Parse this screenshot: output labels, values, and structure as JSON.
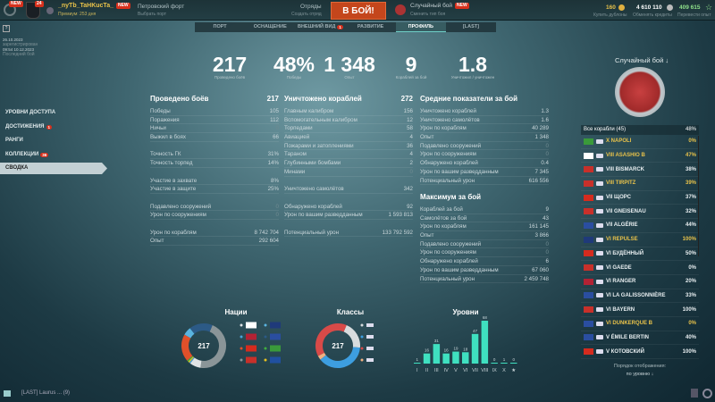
{
  "topbar": {
    "new_badge": "NEW",
    "level_badge": "24",
    "username": "_nyTb_TaHKucTa_",
    "premium": "Премиум: 253 дня",
    "port_name": "Петровский форт",
    "port_sub": "Выбрать порт",
    "squads": "Отряды",
    "squads_sub": "Создать отряд",
    "fight": "В БОЙ!",
    "mode": "Случайный бой",
    "mode_sub": "Сменить тип боя",
    "doubloons": "160",
    "doubloons_sub": "Купить дублоны",
    "credits": "4 610 110",
    "credits_sub": "Обменять кредиты",
    "freexp": "409 615",
    "freexp_sub": "Перевести опыт"
  },
  "tabs": [
    {
      "label": "ПОРТ"
    },
    {
      "label": "ОСНАЩЕНИЕ"
    },
    {
      "label": "ВНЕШНИЙ ВИД",
      "badge": "1"
    },
    {
      "label": "РАЗВИТИЕ"
    },
    {
      "label": "ПРОФИЛЬ",
      "active": true
    },
    {
      "label": "[LAST]"
    }
  ],
  "account": {
    "registered": "26.10.2023",
    "registered_label": "зарегистрирован",
    "last_battle": "09:54 10.12.2023",
    "last_battle_label": "Последний бой"
  },
  "sidebar": [
    {
      "label": "УРОВНИ ДОСТУПА"
    },
    {
      "label": "ДОСТИЖЕНИЯ",
      "badge": "1"
    },
    {
      "label": "РАНГИ"
    },
    {
      "label": "КОЛЛЕКЦИИ",
      "badge": "36"
    },
    {
      "label": "СВОДКА",
      "active": true
    }
  ],
  "summary": [
    {
      "value": "217",
      "label": "Проведено боёв"
    },
    {
      "value": "48%",
      "label": "Победы"
    },
    {
      "value": "1 348",
      "label": "Опыт"
    },
    {
      "value": "9",
      "label": "Кораблей за бой"
    },
    {
      "value": "1.8",
      "label": "Уничтожил / уничтожен"
    }
  ],
  "mode_selector": "Случайный бой",
  "battles": {
    "title": "Проведено боёв",
    "total": "217",
    "groups": [
      [
        [
          "Победы",
          "105"
        ],
        [
          "Поражения",
          "112"
        ],
        [
          "Ничьи",
          "0"
        ],
        [
          "Выжил в боях",
          "66"
        ]
      ],
      [
        [
          "Точность ГК",
          "31%"
        ],
        [
          "Точность торпед",
          "14%"
        ]
      ],
      [
        [
          "Участие в захвате",
          "8%"
        ],
        [
          "Участие в защите",
          "25%"
        ]
      ],
      [
        [
          "Подавлено сооружений",
          "0"
        ],
        [
          "Урон по сооружениям",
          "0"
        ]
      ],
      [
        [
          "Урон по кораблям",
          "8 742 704"
        ],
        [
          "Опыт",
          "292 604"
        ]
      ]
    ]
  },
  "destroyed": {
    "title": "Уничтожено кораблей",
    "total": "272",
    "groups": [
      [
        [
          "Главным калибром",
          "156"
        ],
        [
          "Вспомогательным калибром",
          "12"
        ],
        [
          "Торпедами",
          "58"
        ],
        [
          "Авиацией",
          "4"
        ],
        [
          "Пожарами и затоплениями",
          "36"
        ],
        [
          "Тараном",
          "4"
        ],
        [
          "Глубинными бомбами",
          "2"
        ],
        [
          "Минами",
          "0"
        ]
      ],
      [
        [
          "Уничтожено самолётов",
          "342"
        ]
      ],
      [
        [
          "Обнаружено кораблей",
          "92"
        ],
        [
          "Урон по вашим разведданным",
          "1 593 813"
        ]
      ],
      [
        [
          "Потенциальный урон",
          "133 792 592"
        ]
      ]
    ]
  },
  "average": {
    "title": "Средние показатели за бой",
    "rows": [
      [
        "Уничтожено кораблей",
        "1.3"
      ],
      [
        "Уничтожено самолётов",
        "1.6"
      ],
      [
        "Урон по кораблям",
        "40 289"
      ],
      [
        "Опыт",
        "1 348"
      ],
      [
        "Подавлено сооружений",
        "0"
      ],
      [
        "Урон по сооружениям",
        "0"
      ],
      [
        "Обнаружено кораблей",
        "0.4"
      ],
      [
        "Урон по вашим разведданным",
        "7 345"
      ],
      [
        "Потенциальный урон",
        "616 556"
      ]
    ]
  },
  "maximum": {
    "title": "Максимум за бой",
    "rows": [
      [
        "Кораблей за бой",
        "9"
      ],
      [
        "Самолётов за бой",
        "43"
      ],
      [
        "Урон по кораблям",
        "161 145"
      ],
      [
        "Опыт",
        "3 866"
      ],
      [
        "Подавлено сооружений",
        "0"
      ],
      [
        "Урон по сооружениям",
        "0"
      ],
      [
        "Обнаружено кораблей",
        "6"
      ],
      [
        "Урон по вашим разведданным",
        "67 060"
      ],
      [
        "Потенциальный урон",
        "2 459 748"
      ]
    ]
  },
  "ships": {
    "header": "Все корабли (45)",
    "header_pct": "48%",
    "items": [
      {
        "name": "X NAPOLI",
        "pct": "0%",
        "flag": "italy",
        "prem": true
      },
      {
        "name": "VIII ASASHIO B",
        "pct": "47%",
        "flag": "japan",
        "prem": true
      },
      {
        "name": "VIII BISMARCK",
        "pct": "38%",
        "flag": "germany",
        "prem": false
      },
      {
        "name": "VIII TIRPITZ",
        "pct": "39%",
        "flag": "germany",
        "prem": true
      },
      {
        "name": "VII ЩОРС",
        "pct": "37%",
        "flag": "ussr",
        "prem": false
      },
      {
        "name": "VII GNEISENAU",
        "pct": "32%",
        "flag": "germany",
        "prem": false
      },
      {
        "name": "VII ALGÉRIE",
        "pct": "44%",
        "flag": "france",
        "prem": false
      },
      {
        "name": "VI REPULSE",
        "pct": "100%",
        "flag": "uk",
        "prem": true
      },
      {
        "name": "VI БУДЁННЫЙ",
        "pct": "50%",
        "flag": "ussr",
        "prem": false
      },
      {
        "name": "VI GAEDE",
        "pct": "0%",
        "flag": "germany",
        "prem": false
      },
      {
        "name": "VI RANGER",
        "pct": "20%",
        "flag": "usa",
        "prem": false
      },
      {
        "name": "VI LA GALISSONNIÈRE",
        "pct": "33%",
        "flag": "france",
        "prem": false
      },
      {
        "name": "VI BAYERN",
        "pct": "100%",
        "flag": "germany",
        "prem": false
      },
      {
        "name": "VI DUNKERQUE B",
        "pct": "0%",
        "flag": "france",
        "prem": true
      },
      {
        "name": "V ÉMILE BERTIN",
        "pct": "40%",
        "flag": "france",
        "prem": false
      },
      {
        "name": "V КОТОВСКИЙ",
        "pct": "100%",
        "flag": "ussr",
        "prem": false
      }
    ],
    "sort_label": "Порядок отображения:",
    "sort_value": "по уровню"
  },
  "flag_colors": {
    "italy": "#3a9a3a",
    "japan": "#ffffff",
    "germany": "#c8302a",
    "ussr": "#d52b1e",
    "france": "#2a4ea0",
    "uk": "#1f3a7a",
    "usa": "#b22234"
  },
  "chart_data": [
    {
      "type": "pie",
      "title": "Нации",
      "center_label": "217",
      "slices": [
        {
          "nation": "germany",
          "color": "#8a9598",
          "share": 0.46
        },
        {
          "nation": "japan",
          "color": "#dfe3e5",
          "share": 0.08
        },
        {
          "nation": "usa",
          "color": "#4aa3d8",
          "share": 0.01
        },
        {
          "nation": "pan-asia",
          "color": "#e8c020",
          "share": 0.01
        },
        {
          "nation": "italy",
          "color": "#3fae3f",
          "share": 0.01
        },
        {
          "nation": "ussr",
          "color": "#e0502a",
          "share": 0.2
        },
        {
          "nation": "uk",
          "color": "#5ab4e0",
          "share": 0.06
        },
        {
          "nation": "france",
          "color": "#2c5a86",
          "share": 0.17
        }
      ],
      "legend": [
        "japan",
        "uk",
        "usa",
        "france",
        "ussr",
        "italy",
        "germany",
        "pan-asia"
      ]
    },
    {
      "type": "pie",
      "title": "Классы",
      "center_label": "217",
      "slices": [
        {
          "class": "destroyer",
          "color": "#d8dcde",
          "share": 0.2
        },
        {
          "class": "cruiser",
          "color": "#3d9ee0",
          "share": 0.38
        },
        {
          "class": "carrier",
          "color": "#f0b080",
          "share": 0.03
        },
        {
          "class": "battleship",
          "color": "#d84a48",
          "share": 0.39
        }
      ],
      "legend": [
        "destroyer",
        "cruiser",
        "battleship",
        "carrier"
      ]
    },
    {
      "type": "bar",
      "title": "Уровни",
      "categories": [
        "I",
        "II",
        "III",
        "IV",
        "V",
        "VI",
        "VII",
        "VIII",
        "IX",
        "X",
        "★"
      ],
      "values": [
        1,
        16,
        31,
        16,
        19,
        18,
        47,
        68,
        0,
        1,
        0
      ],
      "color": "#3fe0c0"
    }
  ],
  "chat": {
    "channel": "[LAST] Laurus ...",
    "count": "(9)"
  }
}
